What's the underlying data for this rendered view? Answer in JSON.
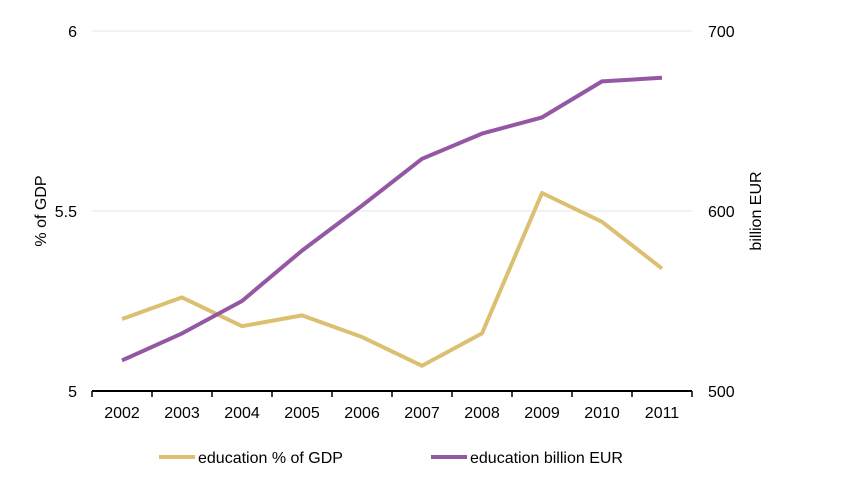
{
  "chart_data": {
    "type": "line",
    "title": "",
    "categories": [
      "2002",
      "2003",
      "2004",
      "2005",
      "2006",
      "2007",
      "2008",
      "2009",
      "2010",
      "2011"
    ],
    "y_left": {
      "label": "% of GDP",
      "range": [
        5,
        6
      ],
      "ticks": [
        "5",
        "5.5",
        "6"
      ],
      "tick_values": [
        5,
        5.5,
        6
      ]
    },
    "y_right": {
      "label": "billion EUR",
      "range": [
        500,
        700
      ],
      "ticks": [
        "500",
        "600",
        "700"
      ],
      "tick_values": [
        500,
        600,
        700
      ]
    },
    "grid": true,
    "series": [
      {
        "name": "education % of GDP",
        "axis": "left",
        "color": "#dcc072",
        "values": [
          5.2,
          5.26,
          5.18,
          5.21,
          5.15,
          5.07,
          5.16,
          5.55,
          5.47,
          5.34
        ]
      },
      {
        "name": "education billion EUR",
        "axis": "right",
        "color": "#9457a3",
        "values": [
          517,
          532,
          550,
          578,
          603,
          629,
          643,
          652,
          672,
          674
        ]
      }
    ],
    "legend": {
      "placement": "bottom",
      "entries": [
        "education % of GDP",
        "education billion EUR"
      ]
    }
  }
}
